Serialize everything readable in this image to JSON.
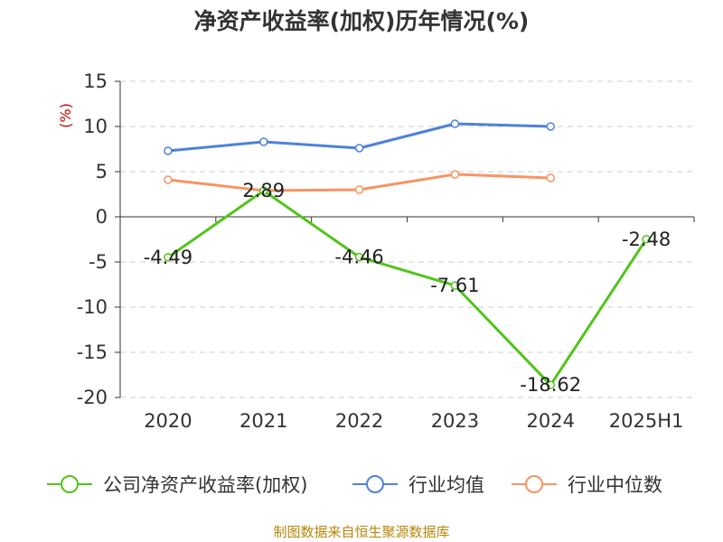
{
  "chart_data": {
    "type": "line",
    "title": "净资产收益率(加权)历年情况(%)",
    "ylabel": "(%)",
    "categories": [
      "2020",
      "2021",
      "2022",
      "2023",
      "2024",
      "2025H1"
    ],
    "ylim": [
      -20,
      15
    ],
    "yticks": [
      15,
      10,
      5,
      0,
      -5,
      -10,
      -15,
      -20
    ],
    "grid": true,
    "legend_position": "bottom",
    "series": [
      {
        "name": "公司净资产收益率(加权)",
        "color": "#52c41a",
        "values": [
          -4.49,
          2.89,
          -4.46,
          -7.61,
          -18.62,
          -2.48
        ],
        "data_labels": [
          "-4.49",
          "2.89",
          "-4.46",
          "-7.61",
          "-18.62",
          "-2.48"
        ]
      },
      {
        "name": "行业均值",
        "color": "#4f81d9",
        "values": [
          7.3,
          8.3,
          7.6,
          10.3,
          10.0,
          null
        ]
      },
      {
        "name": "行业中位数",
        "color": "#f79464",
        "values": [
          4.1,
          2.9,
          3.0,
          4.7,
          4.3,
          null
        ]
      }
    ]
  },
  "source": "制图数据来自恒生聚源数据库"
}
